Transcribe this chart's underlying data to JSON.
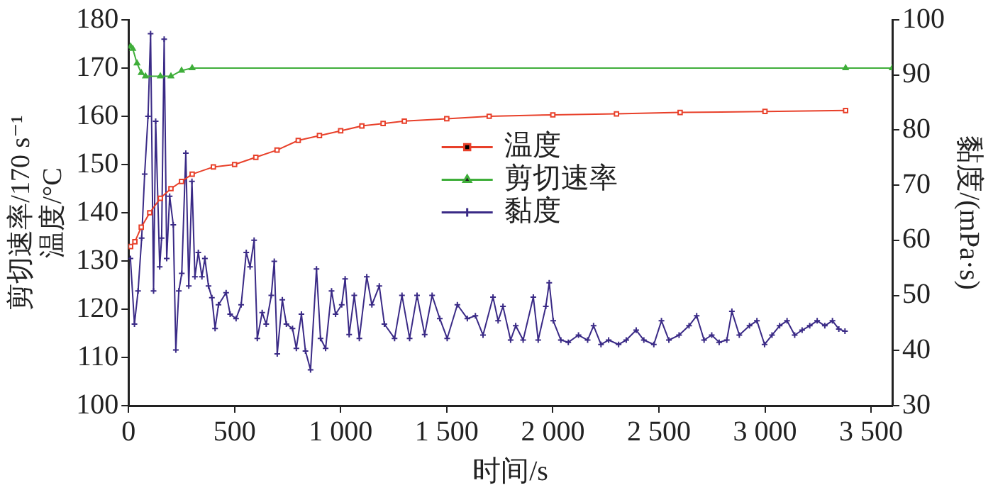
{
  "chart_data": {
    "type": "line",
    "xlabel": "时间/s",
    "ylabel": "剪切速率/170 s⁻¹\n温度/°C",
    "y2label": "黏度/(mPa·s)",
    "xlim": [
      0,
      3600
    ],
    "xticks": [
      0,
      500,
      {
        "value": 1000,
        "label": "1 000"
      },
      {
        "value": 1500,
        "label": "1 500"
      },
      {
        "value": 2000,
        "label": "2 000"
      },
      {
        "value": 2500,
        "label": "2 500"
      },
      {
        "value": 3000,
        "label": "3 000"
      },
      {
        "value": 3500,
        "label": "3 500"
      }
    ],
    "ylim": [
      100,
      180
    ],
    "yticks": [
      100,
      110,
      120,
      130,
      140,
      150,
      160,
      170,
      180
    ],
    "y2lim": [
      30,
      100
    ],
    "y2ticks": [
      30,
      40,
      50,
      60,
      70,
      80,
      90,
      100
    ],
    "grid": false,
    "legend": "center right",
    "series": [
      {
        "name": "温度",
        "color": "#e8402a",
        "marker": "square",
        "x": [
          10,
          30,
          60,
          100,
          150,
          200,
          250,
          300,
          400,
          500,
          600,
          700,
          800,
          900,
          1000,
          1100,
          1200,
          1300,
          1500,
          1700,
          2000,
          2300,
          2600,
          3000,
          3380
        ],
        "values": [
          133,
          134,
          137,
          140,
          143,
          145,
          146.5,
          148,
          149.5,
          150,
          151.5,
          153,
          155,
          156,
          157,
          158,
          158.5,
          159,
          159.5,
          160,
          160.3,
          160.5,
          160.8,
          161,
          161.2
        ]
      },
      {
        "name": "剪切速率",
        "color": "#3fae3a",
        "marker": "triangle",
        "x": [
          10,
          20,
          40,
          60,
          80,
          150,
          200,
          250,
          300,
          3380,
          3600
        ],
        "values": [
          174.5,
          174,
          171,
          169,
          168.3,
          168.3,
          168.3,
          169.5,
          170,
          170,
          170
        ]
      },
      {
        "name": "黏度",
        "color": "#3a2a86",
        "marker": "cross",
        "axis": "y2",
        "x": [
          9,
          28,
          45,
          62,
          76,
          92,
          104,
          118,
          128,
          147,
          156,
          168,
          180,
          194,
          211,
          223,
          237,
          251,
          270,
          284,
          299,
          313,
          329,
          346,
          360,
          377,
          393,
          408,
          424,
          460,
          479,
          507,
          531,
          555,
          573,
          592,
          607,
          630,
          649,
          673,
          687,
          701,
          725,
          744,
          773,
          791,
          815,
          834,
          858,
          886,
          905,
          929,
          957,
          976,
          1005,
          1021,
          1040,
          1064,
          1088,
          1123,
          1147,
          1182,
          1206,
          1254,
          1289,
          1325,
          1360,
          1396,
          1431,
          1467,
          1502,
          1550,
          1597,
          1635,
          1671,
          1718,
          1742,
          1765,
          1801,
          1825,
          1860,
          1908,
          1931,
          1967,
          1983,
          2002,
          2038,
          2073,
          2121,
          2164,
          2192,
          2227,
          2263,
          2310,
          2346,
          2393,
          2429,
          2476,
          2512,
          2547,
          2595,
          2642,
          2678,
          2713,
          2749,
          2784,
          2820,
          2844,
          2879,
          2927,
          2962,
          2998,
          3033,
          3069,
          3104,
          3140,
          3175,
          3211,
          3246,
          3282,
          3318,
          3348,
          3377
        ],
        "values": [
          56.7,
          44.8,
          50.8,
          60.4,
          72,
          82.5,
          97.5,
          50.8,
          81.6,
          55.2,
          60.4,
          96.5,
          56.7,
          68,
          62.8,
          40.1,
          50.8,
          54,
          75.8,
          51.7,
          70.7,
          53.4,
          57.8,
          53.4,
          56.7,
          51.7,
          49.6,
          44,
          48.3,
          50.5,
          46.6,
          45.8,
          48.3,
          57.8,
          55.2,
          60,
          42.2,
          46.9,
          44.8,
          50,
          56.2,
          39.4,
          49.2,
          44.8,
          44,
          40.4,
          46.6,
          39.9,
          36.5,
          54.8,
          42.2,
          40.4,
          50.8,
          46.6,
          48.3,
          53,
          42.9,
          50,
          42.2,
          53.4,
          48.3,
          51.7,
          44.8,
          42.2,
          50,
          42.2,
          50,
          42.9,
          50,
          45.8,
          42.2,
          48.3,
          45.8,
          46.3,
          42.8,
          49.7,
          45.4,
          48,
          41.9,
          44.5,
          41.9,
          49.7,
          41.9,
          48,
          52.3,
          45.4,
          41.9,
          41.5,
          42.8,
          41.9,
          44.5,
          41.1,
          41.9,
          41.1,
          41.9,
          43.7,
          41.9,
          41.1,
          45.4,
          41.9,
          42.8,
          44.5,
          46.3,
          41.9,
          42.8,
          41.5,
          41.9,
          47.1,
          42.8,
          44.5,
          45.4,
          41.1,
          42.8,
          44.5,
          45.4,
          42.8,
          43.7,
          44.5,
          45.4,
          44.5,
          45.4,
          43.9,
          43.5
        ]
      }
    ]
  }
}
